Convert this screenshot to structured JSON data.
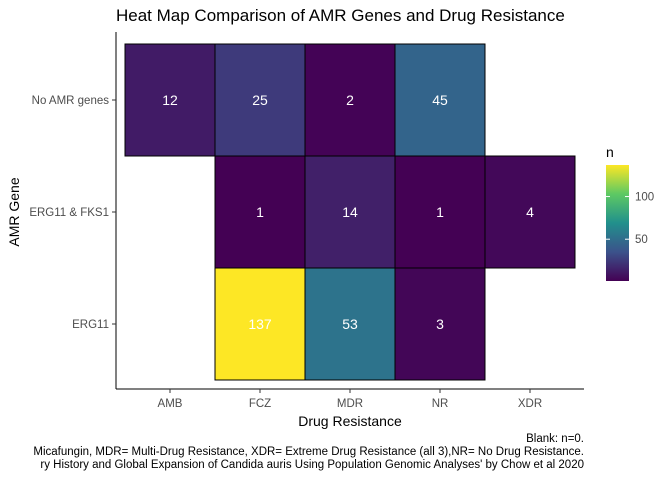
{
  "chart_data": {
    "type": "heatmap",
    "title": "Heat Map Comparison of AMR Genes and Drug Resistance",
    "xlabel": "Drug Resistance",
    "ylabel": "AMR Gene",
    "x_categories": [
      "AMB",
      "FCZ",
      "MDR",
      "NR",
      "XDR"
    ],
    "y_categories": [
      "ERG11",
      "ERG11 & FKS1",
      "No AMR genes"
    ],
    "cells": [
      {
        "x": "AMB",
        "y": "No AMR genes",
        "n": 12
      },
      {
        "x": "FCZ",
        "y": "No AMR genes",
        "n": 25
      },
      {
        "x": "MDR",
        "y": "No AMR genes",
        "n": 2
      },
      {
        "x": "NR",
        "y": "No AMR genes",
        "n": 45
      },
      {
        "x": "FCZ",
        "y": "ERG11 & FKS1",
        "n": 1
      },
      {
        "x": "MDR",
        "y": "ERG11 & FKS1",
        "n": 14
      },
      {
        "x": "NR",
        "y": "ERG11 & FKS1",
        "n": 1
      },
      {
        "x": "XDR",
        "y": "ERG11 & FKS1",
        "n": 4
      },
      {
        "x": "FCZ",
        "y": "ERG11",
        "n": 137
      },
      {
        "x": "MDR",
        "y": "ERG11",
        "n": 53
      },
      {
        "x": "NR",
        "y": "ERG11",
        "n": 3
      }
    ],
    "legend": {
      "title": "n",
      "placement": "right",
      "range": [
        1,
        137
      ],
      "ticks": [
        50,
        100
      ],
      "colormap": "viridis"
    },
    "grid": false
  },
  "captions": [
    "Blank: n=0.",
    "Micafungin, MDR= Multi-Drug Resistance, XDR= Extreme Drug Resistance (all 3),NR= No Drug Resistance.",
    "ry History and Global Expansion of Candida auris Using Population Genomic Analyses' by Chow et al 2020"
  ],
  "colors": {
    "cell_border": "#000000",
    "cell_text": "#ffffff",
    "axis_text": "#4d4d4d"
  }
}
